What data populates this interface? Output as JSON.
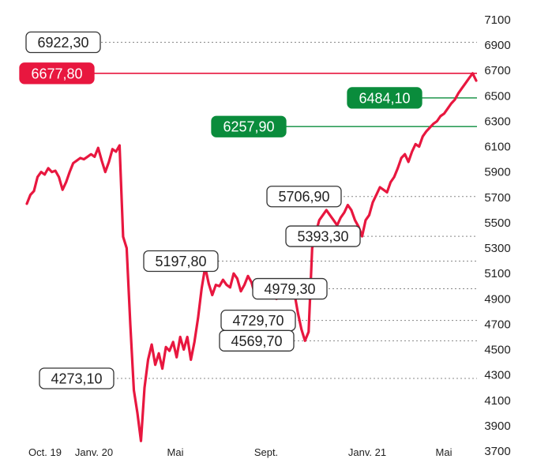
{
  "chart_data": {
    "type": "line",
    "x_labels": [
      "Oct. 19",
      "Janv. 20",
      "Mai",
      "Sept.",
      "Janv. 21",
      "Mai"
    ],
    "y_ticks": [
      3700,
      3900,
      4100,
      4300,
      4500,
      4700,
      4900,
      5100,
      5300,
      5500,
      5700,
      5900,
      6100,
      6300,
      6500,
      6700,
      6900,
      7100
    ],
    "ylim": [
      3700,
      7100
    ],
    "grid": false,
    "colors": {
      "line": "#e8173f",
      "neutral_box_border": "#333333",
      "red_box": "#e8173f",
      "green_box": "#0a8c3c",
      "red_line": "#e8173f",
      "green_line": "#0a8c3c",
      "dotted_line": "#888888"
    },
    "series": [
      {
        "values": [
          5650,
          5720,
          5750,
          5860,
          5900,
          5880,
          5930,
          5900,
          5910,
          5860,
          5760,
          5820,
          5900,
          5970,
          5990,
          6010,
          6000,
          6020,
          6040,
          6020,
          6090,
          5990,
          5900,
          5980,
          6080,
          6060,
          6110,
          5390,
          5300,
          4700,
          4180,
          4000,
          3780,
          4200,
          4420,
          4540,
          4380,
          4470,
          4350,
          4520,
          4490,
          4560,
          4440,
          4600,
          4500,
          4600,
          4420,
          4560,
          4750,
          4980,
          5150,
          5020,
          4930,
          5010,
          5000,
          5050,
          5010,
          4990,
          5100,
          5060,
          4960,
          5010,
          5080,
          5030,
          4930,
          4970,
          4990,
          5010,
          5030,
          5020,
          4900,
          4940,
          4980,
          5020,
          4990,
          4950,
          4790,
          4660,
          4569.7,
          4640,
          5300,
          5420,
          5520,
          5560,
          5600,
          5560,
          5520,
          5480,
          5540,
          5580,
          5640,
          5600,
          5520,
          5470,
          5393.3,
          5520,
          5560,
          5660,
          5720,
          5780,
          5760,
          5740,
          5820,
          5860,
          5930,
          6010,
          6040,
          5980,
          6060,
          6120,
          6100,
          6180,
          6220,
          6250,
          6280,
          6300,
          6340,
          6360,
          6400,
          6440,
          6470,
          6520,
          6560,
          6600,
          6640,
          6677.8,
          6620
        ]
      }
    ],
    "annotations": [
      {
        "label": "6922,30",
        "value": 6922.3,
        "style": "neutral",
        "line": "dotted"
      },
      {
        "label": "6677,80",
        "value": 6677.8,
        "style": "red",
        "line": "solid-red"
      },
      {
        "label": "6484,10",
        "value": 6484.1,
        "style": "green",
        "line": "solid-green"
      },
      {
        "label": "6257,90",
        "value": 6257.9,
        "style": "green",
        "line": "solid-green"
      },
      {
        "label": "5706,90",
        "value": 5706.9,
        "style": "neutral",
        "line": "dotted"
      },
      {
        "label": "5393,30",
        "value": 5393.3,
        "style": "neutral",
        "line": "dotted"
      },
      {
        "label": "5197,80",
        "value": 5197.8,
        "style": "neutral",
        "line": "dotted"
      },
      {
        "label": "4979,30",
        "value": 4979.3,
        "style": "neutral",
        "line": "dotted"
      },
      {
        "label": "4729,70",
        "value": 4729.7,
        "style": "neutral",
        "line": "dotted"
      },
      {
        "label": "4569,70",
        "value": 4569.7,
        "style": "neutral",
        "line": "dotted"
      },
      {
        "label": "4273,10",
        "value": 4273.1,
        "style": "neutral",
        "line": "dotted"
      }
    ]
  }
}
